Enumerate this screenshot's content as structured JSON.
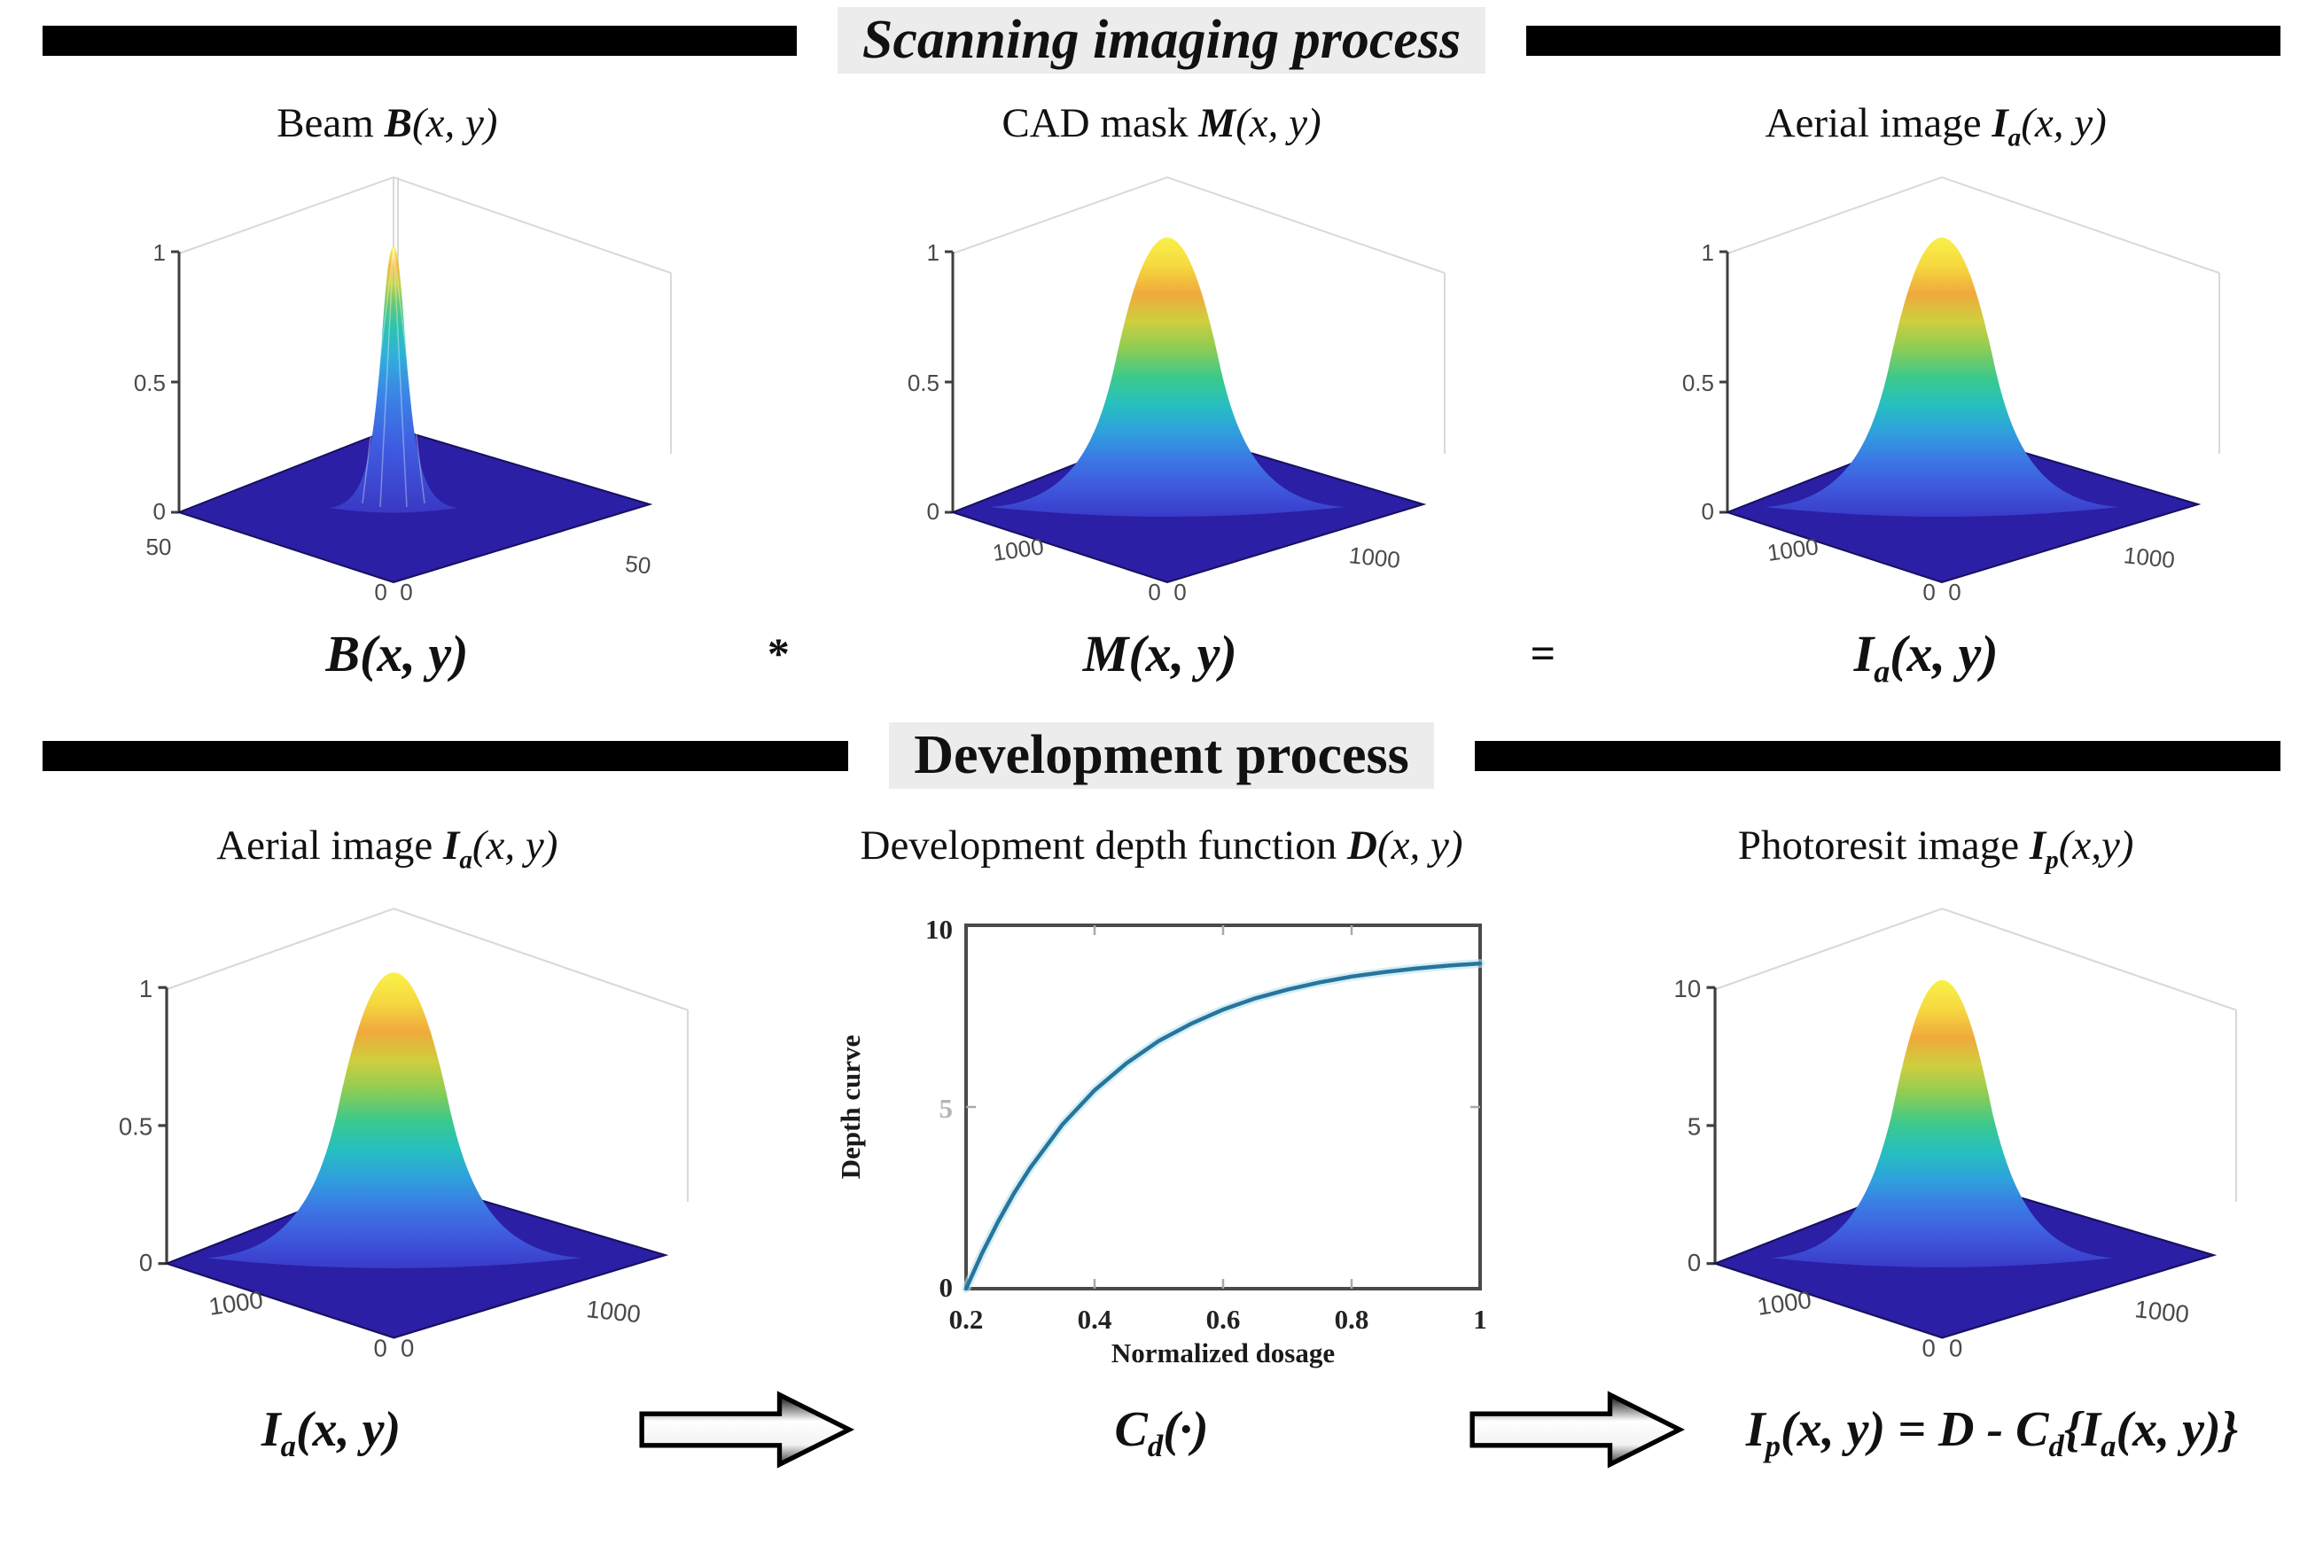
{
  "s1": {
    "header": "Scanning imaging process",
    "titles": {
      "p1": [
        {
          "t": "Beam "
        },
        {
          "t": "B",
          "b": true,
          "i": true
        },
        {
          "t": "(x, y)",
          "i": true
        }
      ],
      "p2": [
        {
          "t": "CAD mask "
        },
        {
          "t": "M",
          "b": true,
          "i": true
        },
        {
          "t": "(x, y)",
          "i": true
        }
      ],
      "p3": [
        {
          "t": "Aerial image "
        },
        {
          "t": "I",
          "b": true,
          "i": true
        },
        {
          "t": "a",
          "b": true,
          "i": true,
          "sub": true
        },
        {
          "t": "(x, y)",
          "i": true
        }
      ]
    },
    "plots": {
      "p1": {
        "zt": [
          "1",
          "0.5",
          "0"
        ],
        "lt": "50",
        "rt": "50",
        "ot": "0  0"
      },
      "p2": {
        "zt": [
          "1",
          "0.5",
          "0"
        ],
        "lt": "1000",
        "rt": "1000",
        "ot": "0  0"
      },
      "p3": {
        "zt": [
          "1",
          "0.5",
          "0"
        ],
        "lt": "1000",
        "rt": "1000",
        "ot": "0  0"
      }
    },
    "formula": {
      "t1": [
        {
          "t": "B(x, y)"
        }
      ],
      "op1": "*",
      "t2": [
        {
          "t": "M(x, y)"
        }
      ],
      "op2": "=",
      "t3": [
        {
          "t": "I"
        },
        {
          "t": "a",
          "sub": true
        },
        {
          "t": "(x, y)"
        }
      ]
    }
  },
  "s2": {
    "header": "Development process",
    "titles": {
      "p1": [
        {
          "t": "Aerial image "
        },
        {
          "t": "I",
          "b": true,
          "i": true
        },
        {
          "t": "a",
          "b": true,
          "i": true,
          "sub": true
        },
        {
          "t": "(x, y)",
          "i": true
        }
      ],
      "p2": [
        {
          "t": "Development depth function "
        },
        {
          "t": "D",
          "b": true,
          "i": true
        },
        {
          "t": "(x, y)",
          "i": true
        }
      ],
      "p3": [
        {
          "t": "Photoresit image "
        },
        {
          "t": "I",
          "b": true,
          "i": true
        },
        {
          "t": "p",
          "b": true,
          "i": true,
          "sub": true
        },
        {
          "t": "(x,y)",
          "i": true
        }
      ]
    },
    "plots": {
      "p1": {
        "zt": [
          "1",
          "0.5",
          "0"
        ],
        "lt": "1000",
        "rt": "1000",
        "ot": "0  0"
      },
      "p2": {
        "ylabel": "Depth curve",
        "xlabel": "Normalized dosage",
        "yt": [
          "10",
          "5",
          "0"
        ],
        "xt": [
          "0.2",
          "0.4",
          "0.6",
          "0.8",
          "1"
        ]
      },
      "p3": {
        "zt": [
          "10",
          "5",
          "0"
        ],
        "lt": "1000",
        "rt": "1000",
        "ot": "0  0"
      }
    },
    "formula": {
      "t1": [
        {
          "t": "I"
        },
        {
          "t": "a",
          "sub": true
        },
        {
          "t": "(x, y)"
        }
      ],
      "t2": [
        {
          "t": "C"
        },
        {
          "t": "d",
          "sub": true
        },
        {
          "t": "(·)"
        }
      ],
      "t3": [
        {
          "t": "I"
        },
        {
          "t": "p",
          "sub": true
        },
        {
          "t": "(x, y) = D - C"
        },
        {
          "t": "d",
          "sub": true
        },
        {
          "t": "{I"
        },
        {
          "t": "a",
          "sub": true
        },
        {
          "t": "(x, y)}"
        }
      ]
    }
  },
  "chart_data": [
    {
      "type": "surface",
      "panel": "beam",
      "title": "Beam B(x, y)",
      "zlim": [
        0,
        1
      ],
      "z_ticks": [
        0,
        0.5,
        1
      ],
      "x_ticks": [
        0,
        50
      ],
      "y_ticks": [
        0,
        50
      ],
      "shape": "narrow Gaussian spike at center, peak 1",
      "colormap": "parula"
    },
    {
      "type": "surface",
      "panel": "cad-mask",
      "title": "CAD mask M(x, y)",
      "zlim": [
        0,
        1
      ],
      "z_ticks": [
        0,
        0.5,
        1
      ],
      "x_ticks": [
        0,
        1000
      ],
      "y_ticks": [
        0,
        1000
      ],
      "shape": "wide smooth dome, peak ~1",
      "colormap": "parula"
    },
    {
      "type": "surface",
      "panel": "aerial-image-top",
      "title": "Aerial image Ia(x, y)",
      "zlim": [
        0,
        1
      ],
      "z_ticks": [
        0,
        0.5,
        1
      ],
      "x_ticks": [
        0,
        1000
      ],
      "y_ticks": [
        0,
        1000
      ],
      "shape": "wide smooth dome, peak ~1",
      "colormap": "parula"
    },
    {
      "type": "surface",
      "panel": "aerial-image-bottom",
      "title": "Aerial image Ia(x, y)",
      "zlim": [
        0,
        1
      ],
      "z_ticks": [
        0,
        0.5,
        1
      ],
      "x_ticks": [
        0,
        1000
      ],
      "y_ticks": [
        0,
        1000
      ],
      "shape": "wide smooth dome, peak ~1",
      "colormap": "parula"
    },
    {
      "type": "line",
      "panel": "depth-function",
      "title": "Development depth function D(x, y)",
      "xlabel": "Normalized dosage",
      "ylabel": "Depth curve",
      "xlim": [
        0.2,
        1
      ],
      "ylim": [
        0,
        10
      ],
      "x_ticks": [
        0.2,
        0.4,
        0.6,
        0.8,
        1
      ],
      "y_ticks": [
        0,
        5,
        10
      ],
      "grid": false,
      "legend": false,
      "series": [
        {
          "name": "Depth curve",
          "points": [
            [
              0.2,
              0
            ],
            [
              0.225,
              0.98
            ],
            [
              0.25,
              1.85
            ],
            [
              0.275,
              2.64
            ],
            [
              0.3,
              3.33
            ],
            [
              0.35,
              4.52
            ],
            [
              0.4,
              5.46
            ],
            [
              0.45,
              6.21
            ],
            [
              0.5,
              6.82
            ],
            [
              0.55,
              7.29
            ],
            [
              0.6,
              7.68
            ],
            [
              0.65,
              7.99
            ],
            [
              0.7,
              8.23
            ],
            [
              0.75,
              8.43
            ],
            [
              0.8,
              8.59
            ],
            [
              0.85,
              8.71
            ],
            [
              0.9,
              8.81
            ],
            [
              0.95,
              8.89
            ],
            [
              1.0,
              8.95
            ]
          ]
        }
      ],
      "line_color": "#27759c"
    },
    {
      "type": "surface",
      "panel": "photoresist-image",
      "title": "Photoresit image Ip(x,y)",
      "zlim": [
        0,
        10
      ],
      "z_ticks": [
        0,
        5,
        10
      ],
      "x_ticks": [
        0,
        1000
      ],
      "y_ticks": [
        0,
        1000
      ],
      "shape": "dome, peak ~9.5",
      "colormap": "parula"
    }
  ],
  "colors": {
    "surface_base": "#2a1fa5",
    "curve": "#27759c",
    "curve_glow": "#b8e2ef",
    "header_bg": "#ececec",
    "bar": "#000000"
  }
}
